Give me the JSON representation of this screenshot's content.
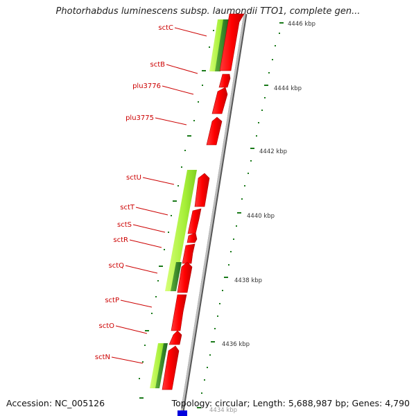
{
  "title": "Photorhabdus luminescens subsp. laumondii TTO1, complete gen...",
  "footer": {
    "accession": "Accession: NC_005126",
    "summary": "Topology: circular; Length: 5,688,987 bp; Genes: 4,790"
  },
  "gene_labels": [
    "sctC",
    "sctB",
    "plu3776",
    "plu3775",
    "sctU",
    "sctT",
    "sctS",
    "sctR",
    "sctQ",
    "sctP",
    "sctO",
    "sctN"
  ],
  "kbp_ticks": [
    "4446 kbp",
    "4444 kbp",
    "4442 kbp",
    "4440 kbp",
    "4438 kbp",
    "4436 kbp",
    "4434 kbp"
  ],
  "colors": {
    "cds_feature": "#ff0000",
    "gene_label": "#cc0000",
    "tick": "#1a7a1a",
    "backbone": "#8c8c8c",
    "blast_hit_light": "#b7f54a",
    "blast_hit_dark": "#2e8b2e",
    "other_feature": "#0000dd"
  }
}
